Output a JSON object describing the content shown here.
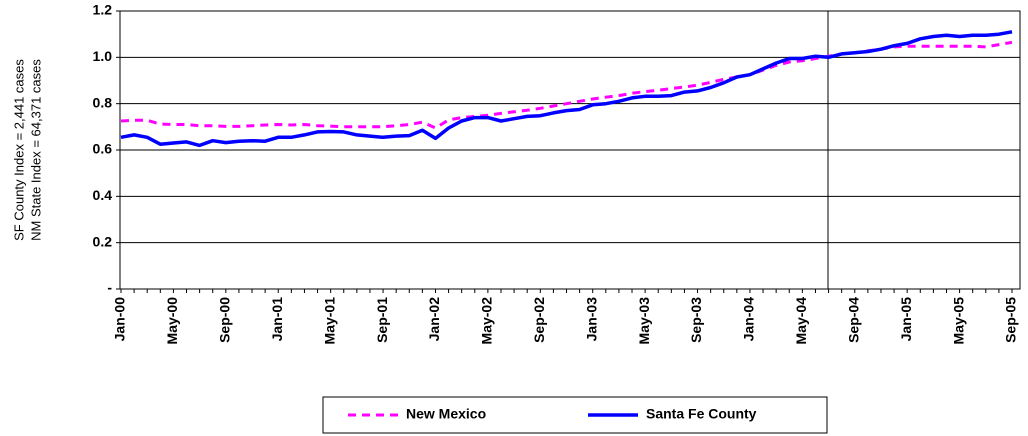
{
  "chart_data": {
    "type": "line",
    "y_axis_label": [
      "SF County Index = 2,441 cases",
      "NM State Index = 64,371 cases"
    ],
    "categories": [
      "Jan-00",
      null,
      null,
      null,
      "May-00",
      null,
      null,
      null,
      "Sep-00",
      null,
      null,
      null,
      "Jan-01",
      null,
      null,
      null,
      "May-01",
      null,
      null,
      null,
      "Sep-01",
      null,
      null,
      null,
      "Jan-02",
      null,
      null,
      null,
      "May-02",
      null,
      null,
      null,
      "Sep-02",
      null,
      null,
      null,
      "Jan-03",
      null,
      null,
      null,
      "May-03",
      null,
      null,
      null,
      "Sep-03",
      null,
      null,
      null,
      "Jan-04",
      null,
      null,
      null,
      "May-04",
      null,
      null,
      null,
      "Sep-04",
      null,
      null,
      null,
      "Jan-05",
      null,
      null,
      null,
      "May-05",
      null,
      null,
      null,
      "Sep-05"
    ],
    "series": [
      {
        "name": "New Mexico",
        "color": "#ff00ff",
        "dashed": true,
        "values": [
          0.725,
          0.728,
          0.728,
          0.712,
          0.71,
          0.71,
          0.705,
          0.705,
          0.702,
          0.702,
          0.705,
          0.708,
          0.71,
          0.708,
          0.71,
          0.705,
          0.703,
          0.7,
          0.7,
          0.7,
          0.7,
          0.705,
          0.71,
          0.72,
          0.695,
          0.73,
          0.74,
          0.745,
          0.75,
          0.758,
          0.765,
          0.772,
          0.78,
          0.79,
          0.8,
          0.81,
          0.82,
          0.828,
          0.835,
          0.845,
          0.852,
          0.858,
          0.865,
          0.872,
          0.88,
          0.892,
          0.905,
          0.915,
          0.925,
          0.945,
          0.965,
          0.98,
          0.985,
          0.995,
          1.005,
          1.015,
          1.02,
          1.028,
          1.035,
          1.045,
          1.048,
          1.048,
          1.048,
          1.048,
          1.048,
          1.048,
          1.045,
          1.055,
          1.065
        ]
      },
      {
        "name": "Santa Fe County",
        "color": "#0000ff",
        "dashed": false,
        "values": [
          0.655,
          0.665,
          0.655,
          0.625,
          0.63,
          0.635,
          0.62,
          0.64,
          0.632,
          0.638,
          0.64,
          0.638,
          0.655,
          0.655,
          0.665,
          0.678,
          0.68,
          0.678,
          0.665,
          0.66,
          0.655,
          0.66,
          0.662,
          0.685,
          0.65,
          0.695,
          0.725,
          0.74,
          0.74,
          0.725,
          0.735,
          0.745,
          0.748,
          0.76,
          0.77,
          0.775,
          0.795,
          0.8,
          0.81,
          0.825,
          0.832,
          0.832,
          0.835,
          0.85,
          0.855,
          0.87,
          0.89,
          0.915,
          0.925,
          0.95,
          0.975,
          0.995,
          0.995,
          1.005,
          1.0,
          1.015,
          1.02,
          1.025,
          1.035,
          1.05,
          1.06,
          1.08,
          1.09,
          1.095,
          1.09,
          1.095,
          1.095,
          1.1,
          1.11
        ]
      }
    ],
    "ylim": [
      0,
      1.2
    ],
    "yticks": [
      {
        "value": 0,
        "label": "-"
      },
      0.2,
      0.4,
      0.6,
      0.8,
      {
        "value": 1,
        "label": "1.0"
      },
      1.2
    ],
    "grid": true,
    "legend": "bottom"
  }
}
